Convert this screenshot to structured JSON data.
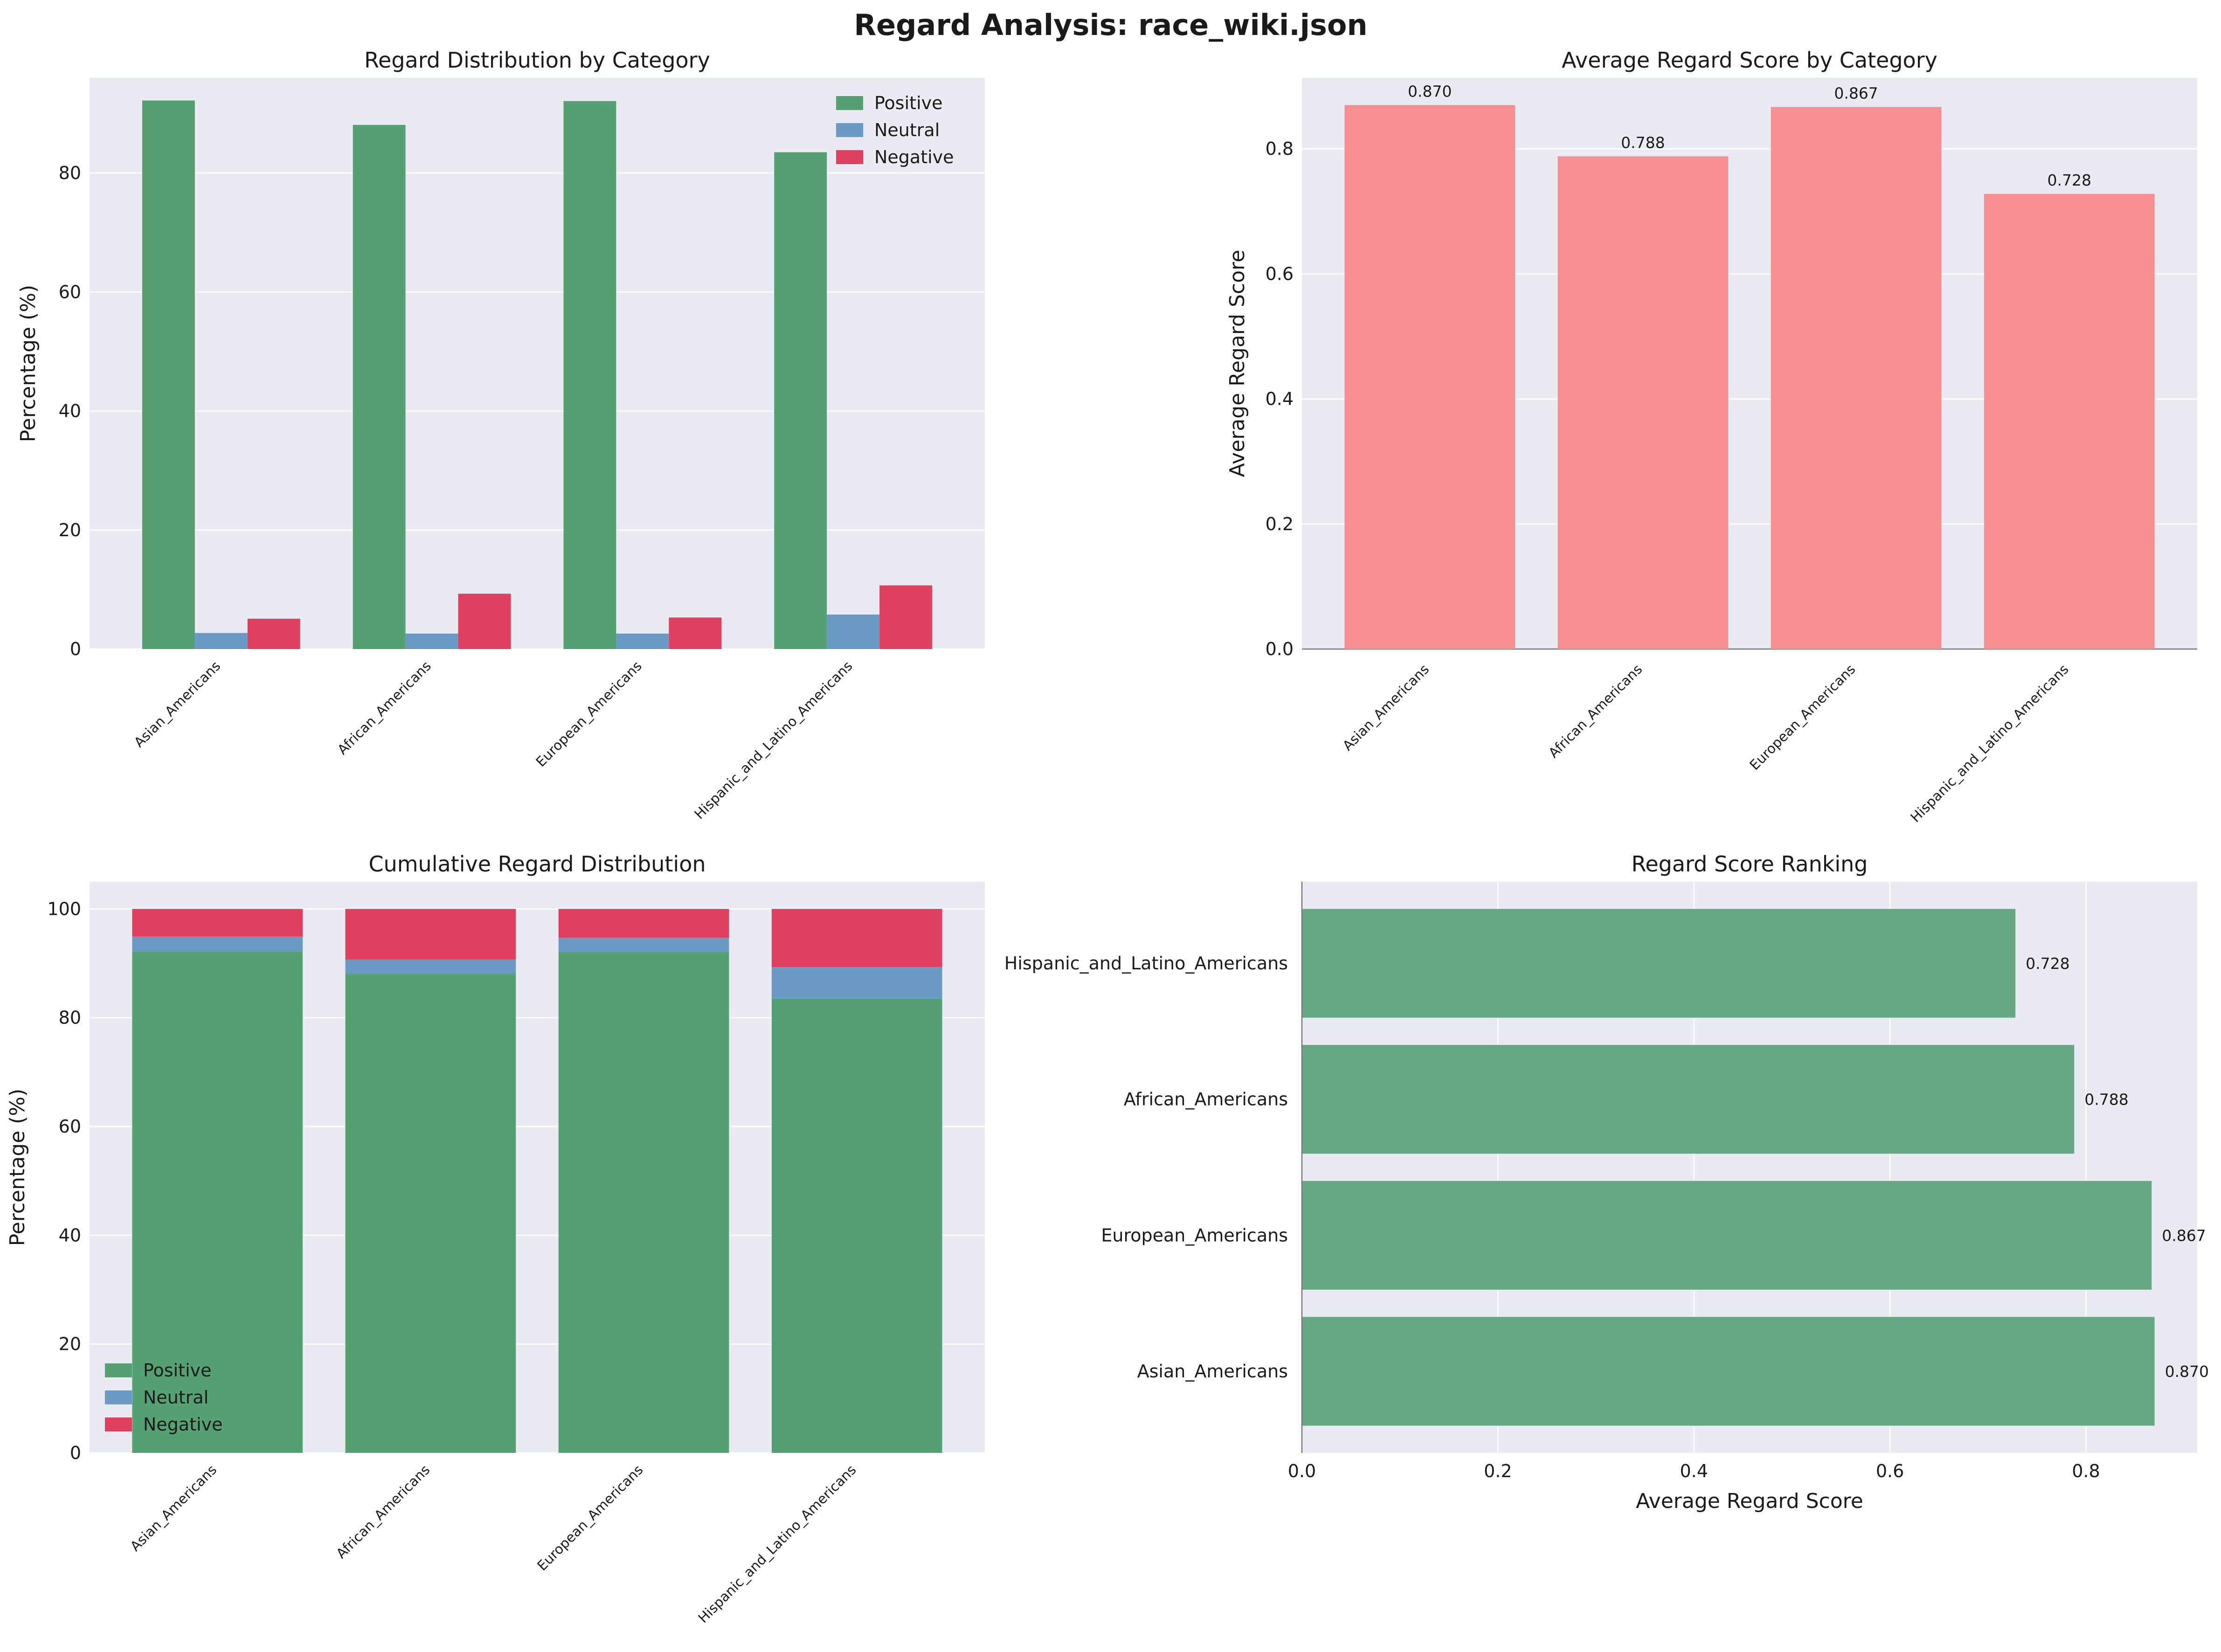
{
  "figure": {
    "title": "Regard Analysis: race_wiki.json"
  },
  "colors": {
    "background": "#eaeaf2",
    "grid": "#ffffff",
    "positive": "#55a174",
    "neutral": "#6b9ac4",
    "negative": "#e0405f",
    "avg_bar": "#f78f92",
    "rank_bar": "#66a886"
  },
  "chart_data": [
    {
      "id": "distribution",
      "type": "bar",
      "title": "Regard Distribution by Category",
      "xlabel": "",
      "ylabel": "Percentage (%)",
      "ylim": [
        0,
        96
      ],
      "yticks": [
        0,
        20,
        40,
        60,
        80
      ],
      "grid": true,
      "legend_position": "top-right",
      "categories": [
        "Asian_Americans",
        "African_Americans",
        "European_Americans",
        "Hispanic_and_Latino_Americans"
      ],
      "series": [
        {
          "name": "Positive",
          "values": [
            92.2,
            88.1,
            92.1,
            83.5
          ]
        },
        {
          "name": "Neutral",
          "values": [
            2.7,
            2.6,
            2.6,
            5.8
          ]
        },
        {
          "name": "Negative",
          "values": [
            5.1,
            9.3,
            5.3,
            10.7
          ]
        }
      ]
    },
    {
      "id": "average",
      "type": "bar",
      "title": "Average Regard Score by Category",
      "xlabel": "",
      "ylabel": "Average Regard Score",
      "ylim": [
        0,
        0.9135
      ],
      "yticks": [
        0.0,
        0.2,
        0.4,
        0.6,
        0.8
      ],
      "grid": true,
      "categories": [
        "Asian_Americans",
        "African_Americans",
        "European_Americans",
        "Hispanic_and_Latino_Americans"
      ],
      "values": [
        0.87,
        0.788,
        0.867,
        0.728
      ],
      "value_labels": [
        "0.870",
        "0.788",
        "0.867",
        "0.728"
      ]
    },
    {
      "id": "cumulative",
      "type": "bar",
      "stacked": true,
      "title": "Cumulative Regard Distribution",
      "xlabel": "",
      "ylabel": "Percentage (%)",
      "ylim": [
        0,
        105
      ],
      "yticks": [
        0,
        20,
        40,
        60,
        80,
        100
      ],
      "grid": true,
      "legend_position": "bottom-left",
      "categories": [
        "Asian_Americans",
        "African_Americans",
        "European_Americans",
        "Hispanic_and_Latino_Americans"
      ],
      "series": [
        {
          "name": "Positive",
          "values": [
            92.2,
            88.1,
            92.1,
            83.5
          ]
        },
        {
          "name": "Neutral",
          "values": [
            2.7,
            2.6,
            2.6,
            5.8
          ]
        },
        {
          "name": "Negative",
          "values": [
            5.1,
            9.3,
            5.3,
            10.7
          ]
        }
      ]
    },
    {
      "id": "ranking",
      "type": "bar",
      "orientation": "horizontal",
      "title": "Regard Score Ranking",
      "xlabel": "Average Regard Score",
      "ylabel": "",
      "xlim": [
        0,
        0.9135
      ],
      "xticks": [
        0.0,
        0.2,
        0.4,
        0.6,
        0.8
      ],
      "grid": true,
      "categories": [
        "Asian_Americans",
        "European_Americans",
        "African_Americans",
        "Hispanic_and_Latino_Americans"
      ],
      "values": [
        0.87,
        0.867,
        0.788,
        0.728
      ],
      "value_labels": [
        "0.870",
        "0.867",
        "0.788",
        "0.728"
      ]
    }
  ]
}
